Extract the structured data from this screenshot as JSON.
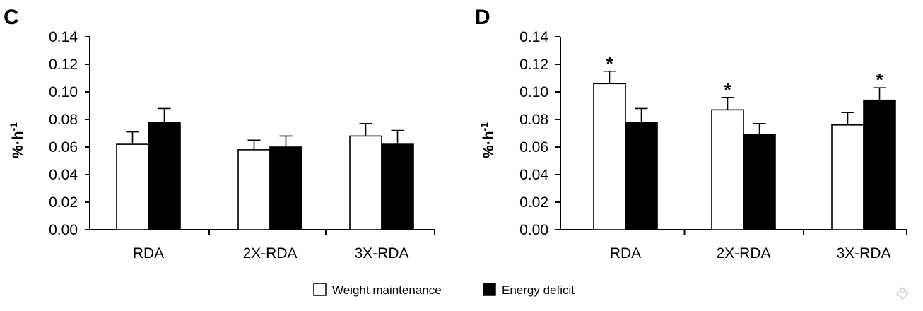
{
  "chart_data": [
    {
      "panel": "C",
      "type": "bar",
      "ylabel_main": "%·h",
      "ylabel_sup": "-1",
      "yticks": [
        "0.00",
        "0.02",
        "0.04",
        "0.06",
        "0.08",
        "0.10",
        "0.12",
        "0.14"
      ],
      "ylim": [
        0,
        0.14
      ],
      "categories": [
        "RDA",
        "2X-RDA",
        "3X-RDA"
      ],
      "series": [
        {
          "name": "Weight maintenance",
          "color": "#ffffff",
          "values": [
            0.062,
            0.058,
            0.068
          ],
          "errors": [
            0.009,
            0.007,
            0.009
          ],
          "significant": [
            false,
            false,
            false
          ]
        },
        {
          "name": "Energy deficit",
          "color": "#000000",
          "values": [
            0.078,
            0.06,
            0.062
          ],
          "errors": [
            0.01,
            0.008,
            0.01
          ],
          "significant": [
            false,
            false,
            false
          ]
        }
      ]
    },
    {
      "panel": "D",
      "type": "bar",
      "ylabel_main": "%·h",
      "ylabel_sup": "-1",
      "yticks": [
        "0.00",
        "0.02",
        "0.04",
        "0.06",
        "0.08",
        "0.10",
        "0.12",
        "0.14"
      ],
      "ylim": [
        0,
        0.14
      ],
      "categories": [
        "RDA",
        "2X-RDA",
        "3X-RDA"
      ],
      "series": [
        {
          "name": "Weight maintenance",
          "color": "#ffffff",
          "values": [
            0.106,
            0.087,
            0.076
          ],
          "errors": [
            0.009,
            0.009,
            0.009
          ],
          "significant": [
            true,
            true,
            false
          ]
        },
        {
          "name": "Energy deficit",
          "color": "#000000",
          "values": [
            0.078,
            0.069,
            0.094
          ],
          "errors": [
            0.01,
            0.008,
            0.009
          ],
          "significant": [
            false,
            false,
            true
          ]
        }
      ]
    }
  ],
  "legend": [
    {
      "label": "Weight maintenance",
      "color": "#ffffff"
    },
    {
      "label": "Energy deficit",
      "color": "#000000"
    }
  ],
  "significance_marker": "*"
}
